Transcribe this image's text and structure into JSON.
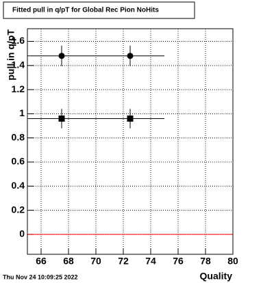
{
  "chart_data": {
    "type": "scatter",
    "title": "Fitted pull in q/pT for Global Rec Pion NoHits",
    "x_label": "Quality",
    "y_label": "pull in q/pT",
    "footer": "Thu Nov 24 10:09:25 2022",
    "xlim": [
      65,
      80
    ],
    "xticks": [
      66,
      68,
      70,
      72,
      74,
      76,
      78,
      80
    ],
    "ylim": [
      -0.165,
      1.705
    ],
    "yticks": [
      0,
      0.2,
      0.4,
      0.6,
      0.8,
      1,
      1.2,
      1.4,
      1.6
    ],
    "grid": true,
    "reference_line": {
      "value": 0,
      "color": "#ff0000"
    },
    "series": [
      {
        "color": "#000000",
        "marker": "circle",
        "x": [
          67.5,
          72.5
        ],
        "values": [
          1.48,
          1.48
        ],
        "xerr": [
          2.5,
          2.5
        ],
        "yerr": [
          0.085,
          0.085
        ]
      },
      {
        "color": "#000000",
        "marker": "square",
        "x": [
          67.5,
          72.5
        ],
        "values": [
          0.96,
          0.96
        ],
        "xerr": [
          2.5,
          2.5
        ],
        "yerr": [
          0.08,
          0.08
        ]
      }
    ]
  }
}
